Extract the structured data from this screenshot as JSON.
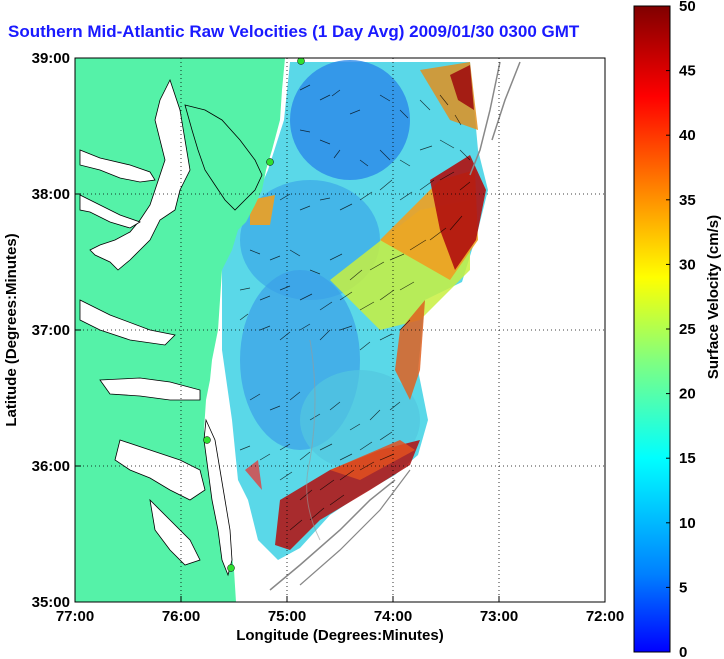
{
  "title": "Southern Mid-Atlantic Raw Velocities (1 Day Avg) 2009/01/30 0300 GMT",
  "map": {
    "xlabel": "Longitude (Degrees:Minutes)",
    "ylabel": "Latitude (Degrees:Minutes)",
    "lon_ticks": [
      "77:00",
      "76:00",
      "75:00",
      "74:00",
      "73:00",
      "72:00"
    ],
    "lat_ticks": [
      "39:00",
      "38:00",
      "37:00",
      "36:00",
      "35:00"
    ],
    "lon_range": [
      -77,
      -72
    ],
    "lat_range": [
      35,
      39
    ],
    "land_color": "#55f2a8",
    "frame_color": "#000000"
  },
  "colorbar": {
    "label": "Surface Velocity (cm/s)",
    "min": 0,
    "max": 50,
    "ticks": [
      "0",
      "5",
      "10",
      "15",
      "20",
      "25",
      "30",
      "35",
      "40",
      "45",
      "50"
    ]
  }
}
